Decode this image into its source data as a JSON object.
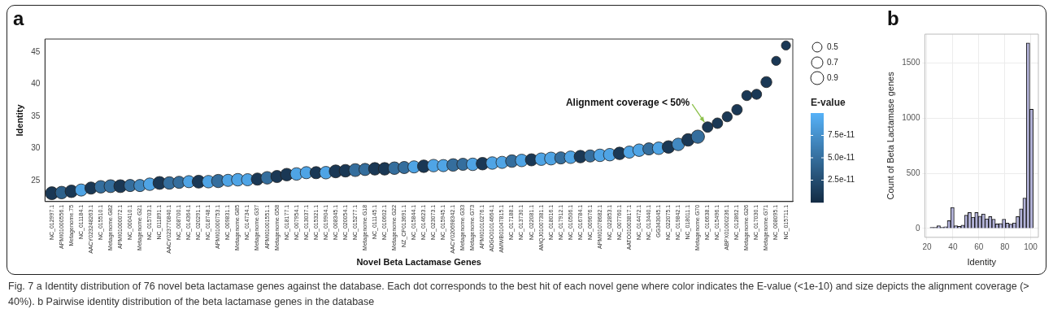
{
  "chart_data": [
    {
      "type": "bubble",
      "title": "a",
      "xlabel": "Novel Beta Lactamase Genes",
      "ylabel": "Identity",
      "clabel": "E-value",
      "categories": [
        "NC_012997.1",
        "APMI01000556.1",
        "Metagenome.75",
        "NC_011184.1",
        "AACY023248263.1",
        "NC_015510.1",
        "Metagenome.G82",
        "APMI01000072.1",
        "NC_000410.1",
        "Metagenome.G21",
        "NC_015703.1",
        "NC_011891.1",
        "AACY023770840.1",
        "NC_008700.1",
        "NC_014364.1",
        "NC_020291.1",
        "NC_018748.1",
        "APMI01000753.1",
        "NC_009831.1",
        "Metagenome.G85",
        "NC_014734.1",
        "Metagenome.G37",
        "APMI01001551.1",
        "Metagenome.G58",
        "NC_018177.1",
        "NC_007954.1",
        "NC_013037.1",
        "NC_015321.1",
        "NC_019904.1",
        "NC_008345.1",
        "NC_020054.1",
        "NC_015277.1",
        "Metagenome.G18",
        "NC_011145.1",
        "NC_010602.1",
        "Metagenome.G22",
        "NZ_CP013691.1",
        "NC_015844.1",
        "NC_014623.1",
        "NC_023073.1",
        "NC_015945.1",
        "AACY020698342.1",
        "Metagenome.G33",
        "Metagenome.G73",
        "APMI01010276.1",
        "ADGO01014664.1",
        "AMWB01047815.1",
        "NC_017188.1",
        "NC_013730.1",
        "NC_022081.1",
        "AMQJ01007381.1",
        "NC_018016.1",
        "NC_017912.1",
        "NC_010506.1",
        "NC_016784.1",
        "NC_009676.1",
        "APMI01078682.1",
        "NC_022853.1",
        "NC_007760.1",
        "AATO01003817.1",
        "NC_014472.1",
        "NC_013440.1",
        "GG343045.1",
        "NC_022075.1",
        "NC_019842.1",
        "NC_018011.1",
        "Metagenome.G70",
        "NC_016638.1",
        "NC_015496.1",
        "ABPX01000236.1",
        "NC_012862.1",
        "Metagenome.G26",
        "NC_017030.1",
        "Metagenome.G71",
        "NC_008095.1",
        "NC_015711.1"
      ],
      "values": [
        23.0,
        23.1,
        23.3,
        23.5,
        23.8,
        24.0,
        24.1,
        24.1,
        24.2,
        24.2,
        24.4,
        24.6,
        24.6,
        24.7,
        24.8,
        24.8,
        24.8,
        24.9,
        25.0,
        25.1,
        25.1,
        25.2,
        25.4,
        25.6,
        25.9,
        26.0,
        26.2,
        26.2,
        26.2,
        26.4,
        26.5,
        26.6,
        26.7,
        26.8,
        26.8,
        26.9,
        27.0,
        27.1,
        27.2,
        27.3,
        27.3,
        27.4,
        27.5,
        27.5,
        27.6,
        27.7,
        27.8,
        28.0,
        28.1,
        28.2,
        28.3,
        28.4,
        28.5,
        28.6,
        28.7,
        28.8,
        28.9,
        29.0,
        29.2,
        29.4,
        29.7,
        29.9,
        30.0,
        30.2,
        30.6,
        31.3,
        31.8,
        33.3,
        33.9,
        34.9,
        36.0,
        38.2,
        38.4,
        40.3,
        43.6,
        46.0
      ],
      "sizes": [
        0.9,
        0.85,
        0.85,
        0.8,
        0.8,
        0.85,
        0.9,
        0.9,
        0.8,
        0.8,
        0.85,
        0.9,
        0.85,
        0.8,
        0.8,
        0.9,
        0.85,
        0.95,
        0.8,
        0.85,
        0.8,
        0.8,
        0.85,
        0.8,
        0.85,
        0.85,
        0.8,
        0.8,
        0.85,
        0.9,
        0.85,
        0.9,
        0.8,
        0.85,
        0.85,
        0.85,
        0.8,
        0.8,
        0.85,
        0.85,
        0.8,
        0.85,
        0.8,
        0.85,
        0.85,
        0.85,
        0.8,
        0.85,
        0.85,
        0.8,
        0.85,
        0.9,
        0.8,
        0.85,
        0.85,
        0.8,
        0.85,
        0.85,
        0.85,
        0.8,
        0.85,
        0.8,
        0.85,
        0.85,
        0.85,
        0.85,
        0.95,
        0.6,
        0.6,
        0.55,
        0.6,
        0.55,
        0.55,
        0.65,
        0.45,
        0.45
      ],
      "cvalues": [
        1e-11,
        4e-11,
        1e-11,
        9e-11,
        1e-11,
        5e-11,
        5e-11,
        1e-11,
        5e-11,
        7e-11,
        9e-11,
        1e-11,
        5e-11,
        5e-11,
        9e-11,
        1e-11,
        9e-11,
        5e-11,
        9e-11,
        9e-11,
        9e-11,
        1e-11,
        5e-11,
        1e-11,
        1e-11,
        9e-11,
        9e-11,
        1e-11,
        9e-11,
        1e-11,
        1e-11,
        5e-11,
        5e-11,
        1e-11,
        1e-11,
        5e-11,
        5e-11,
        9e-11,
        1e-11,
        9e-11,
        9e-11,
        5e-11,
        5e-11,
        9e-11,
        1e-11,
        9e-11,
        9e-11,
        5e-11,
        9e-11,
        1e-11,
        9e-11,
        9e-11,
        5e-11,
        9e-11,
        1e-11,
        5e-11,
        9e-11,
        9e-11,
        1e-11,
        9e-11,
        9e-11,
        5e-11,
        9e-11,
        1e-11,
        7e-11,
        1e-11,
        5e-11,
        1e-11,
        1e-11,
        1e-11,
        1e-11,
        1e-11,
        1e-11,
        1e-11,
        1e-11,
        1e-11
      ],
      "clim": [
        0,
        1e-10
      ],
      "cticks": [
        {
          "value": 2.5e-11,
          "label": "2.5e-11"
        },
        {
          "value": 5e-11,
          "label": "5.0e-11"
        },
        {
          "value": 7.5e-11,
          "label": "7.5e-11"
        }
      ],
      "size_legend": [
        0.5,
        0.7,
        0.9
      ],
      "ylim": [
        21.7,
        47
      ],
      "yticks": [
        25,
        30,
        35,
        40,
        45
      ],
      "annotations": [
        {
          "text": "Alignment coverage < 50%",
          "x": "NC_016638.1",
          "y": 33.3
        },
        "Fig. 7 a Identity distribution of 76 novel beta lactamase genes against the database. Each dot corresponds to the best hit of each novel gene where color indicates the E-value (<1e-10) and size depicts the alignment coverage (> 40%). b Pairwise identity distribution of the beta lactamase genes in the database"
      ]
    },
    {
      "type": "histogram",
      "title": "b",
      "xlabel": "Identity",
      "ylabel": "Count of Beta Lactamase genes",
      "color": "#b3b3d9",
      "bins": [
        22.4,
        25.05,
        27.7,
        30.35,
        33.0,
        35.65,
        38.3,
        40.95,
        43.6,
        46.25,
        48.9,
        51.55,
        54.2,
        56.85,
        59.5,
        62.15,
        64.8,
        67.45,
        70.1,
        72.75,
        75.4,
        78.05,
        80.7,
        83.35,
        86.0,
        88.65,
        91.3,
        93.95,
        96.6,
        99.25,
        101.9
      ],
      "values": [
        10,
        10,
        25,
        10,
        15,
        70,
        190,
        25,
        20,
        30,
        120,
        144,
        102,
        144,
        111,
        132,
        87,
        108,
        84,
        42,
        45,
        84,
        48,
        39,
        51,
        108,
        177,
        276,
        1680,
        1080
      ],
      "xlim": [
        18.4,
        105.9
      ],
      "xticks": [
        20,
        40,
        60,
        80,
        100
      ],
      "ylim": [
        -80,
        1760
      ],
      "yticks": [
        0,
        500,
        1000,
        1500
      ],
      "grid": true
    }
  ]
}
